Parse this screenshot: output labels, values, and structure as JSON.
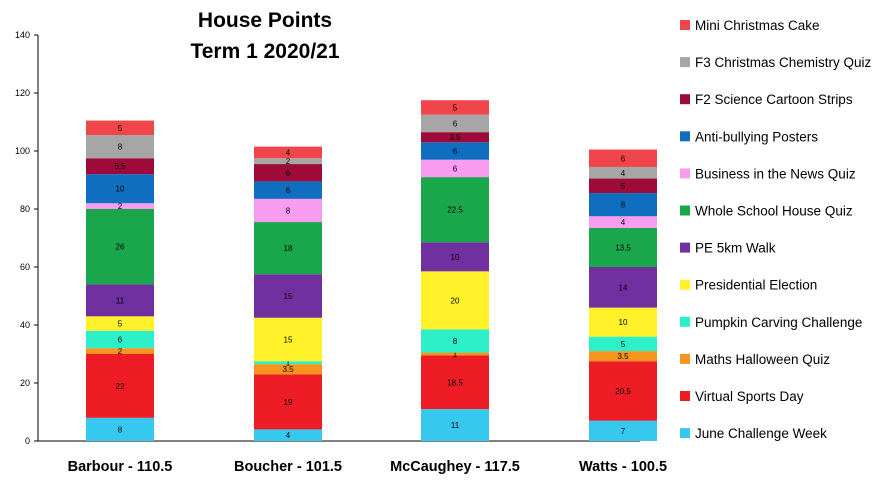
{
  "chart_data": {
    "type": "bar",
    "stacked": true,
    "title": [
      "House Points",
      "Term 1 2020/21"
    ],
    "xlabel": "",
    "ylabel": "",
    "ylim": [
      0,
      140
    ],
    "yticks": [
      0,
      20,
      40,
      60,
      80,
      100,
      120,
      140
    ],
    "categories": [
      "Barbour - 110.5",
      "Boucher - 101.5",
      "McCaughey - 117.5",
      "Watts - 100.5"
    ],
    "legend_position": "right",
    "grid": false,
    "series": [
      {
        "name": "June Challenge Week",
        "color": "#37c8f0",
        "values": [
          8,
          4,
          11,
          7
        ]
      },
      {
        "name": "Virtual Sports Day",
        "color": "#ee1c25",
        "values": [
          22,
          19,
          18.5,
          20.5
        ]
      },
      {
        "name": "Maths Halloween Quiz",
        "color": "#f7941d",
        "values": [
          2,
          3.5,
          1,
          3.5
        ]
      },
      {
        "name": "Pumpkin Carving Challenge",
        "color": "#2ef0c8",
        "values": [
          6,
          1,
          8,
          5
        ]
      },
      {
        "name": "Presidential Election",
        "color": "#fff22a",
        "values": [
          5,
          15,
          20,
          10
        ]
      },
      {
        "name": "PE 5km Walk",
        "color": "#7030a0",
        "values": [
          11,
          15,
          10,
          14
        ]
      },
      {
        "name": "Whole School House Quiz",
        "color": "#1aa64a",
        "values": [
          26,
          18,
          22.5,
          13.5
        ]
      },
      {
        "name": "Business in the News Quiz",
        "color": "#f79cf0",
        "values": [
          2,
          8,
          6,
          4
        ]
      },
      {
        "name": "Anti-bullying Posters",
        "color": "#0f6ebf",
        "values": [
          10,
          6,
          6,
          8
        ]
      },
      {
        "name": "F2 Science Cartoon Strips",
        "color": "#9e0b3a",
        "values": [
          5.5,
          6,
          3.5,
          5
        ]
      },
      {
        "name": "F3 Christmas Chemistry Quiz",
        "color": "#a6a6a6",
        "values": [
          8,
          2,
          6,
          4
        ]
      },
      {
        "name": "Mini Christmas Cake",
        "color": "#f0464b",
        "values": [
          5,
          4,
          5,
          6
        ]
      }
    ]
  }
}
